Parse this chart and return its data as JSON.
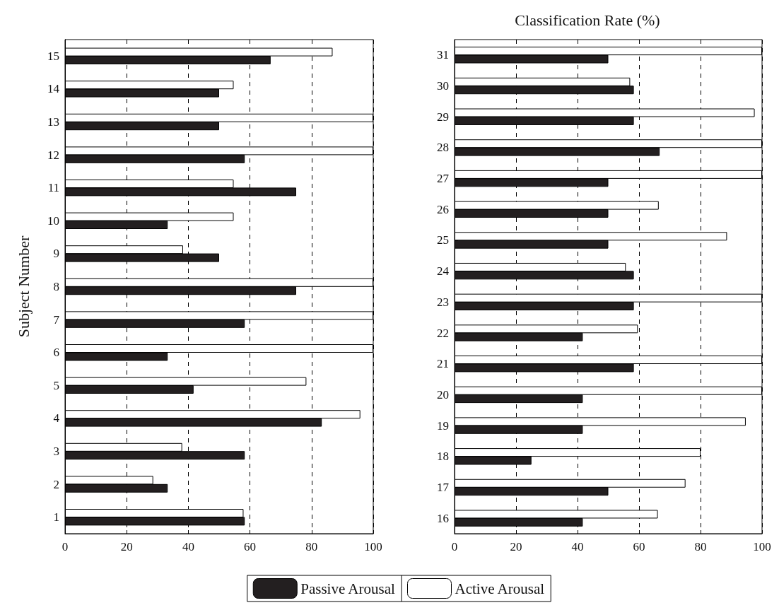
{
  "chart_data": [
    {
      "type": "bar",
      "orientation": "horizontal",
      "ylabel": "Subject Number",
      "categories": [
        "15",
        "14",
        "13",
        "12",
        "11",
        "10",
        "9",
        "8",
        "7",
        "6",
        "5",
        "4",
        "3",
        "2",
        "1"
      ],
      "series": [
        {
          "name": "Passive Arousal",
          "color": "#231f20",
          "values": [
            66.7,
            50,
            50,
            58.3,
            75,
            33.3,
            50,
            75,
            58.3,
            33.3,
            41.7,
            83.3,
            58.3,
            33.3,
            58.3
          ]
        },
        {
          "color": "#ffffff",
          "values": [
            86.8,
            54.7,
            100,
            100,
            54.7,
            54.7,
            38.3,
            100,
            100,
            100,
            78.3,
            95.8,
            38,
            28.6,
            57.9
          ]
        }
      ],
      "xlim": [
        0,
        100
      ],
      "xticks": [
        0,
        20,
        40,
        60,
        80,
        100
      ],
      "grid": "x",
      "legend": "bottom right"
    },
    {
      "type": "bar",
      "orientation": "horizontal",
      "title": "Classification Rate (%)",
      "categories": [
        "31",
        "30",
        "29",
        "28",
        "27",
        "26",
        "25",
        "24",
        "23",
        "22",
        "21",
        "20",
        "19",
        "18",
        "17",
        "16"
      ],
      "series": [
        {
          "color": "#231f20",
          "values": [
            50,
            58.3,
            58.3,
            66.7,
            50,
            50,
            50,
            58.3,
            58.3,
            41.7,
            58.3,
            41.7,
            41.7,
            25,
            50,
            41.7
          ]
        },
        {
          "name": "Active Arousal",
          "color": "#ffffff",
          "values": [
            100,
            57.1,
            97.6,
            100,
            100,
            66.4,
            88.6,
            55.7,
            100,
            59.6,
            100,
            100,
            94.7,
            80,
            75.1,
            66.1
          ]
        }
      ],
      "xlim": [
        0,
        100
      ],
      "xticks": [
        0,
        20,
        40,
        60,
        80,
        100
      ],
      "grid": "x",
      "legend": "bottom left"
    }
  ]
}
